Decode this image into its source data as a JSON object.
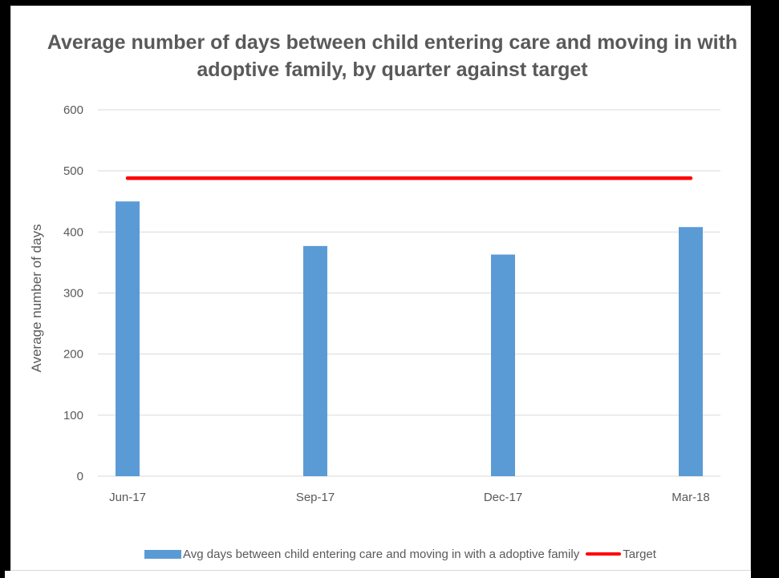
{
  "chart_data": {
    "type": "bar",
    "title": "Average number of days between child entering care and moving in with adoptive family, by quarter against target",
    "xlabel": "",
    "ylabel": "Average number of days",
    "categories": [
      "Jun-17",
      "Sep-17",
      "Dec-17",
      "Mar-18"
    ],
    "ylim": [
      0,
      600
    ],
    "yticks": [
      0,
      100,
      200,
      300,
      400,
      500,
      600
    ],
    "grid": true,
    "legend_position": "bottom",
    "series": [
      {
        "name": "Avg days between child entering care and moving in with a adoptive family",
        "type": "bar",
        "color": "#5b9bd5",
        "values": [
          450,
          377,
          363,
          408
        ]
      },
      {
        "name": "Target",
        "type": "line",
        "color": "#ff0000",
        "values": [
          488,
          488,
          488,
          488
        ]
      }
    ]
  }
}
